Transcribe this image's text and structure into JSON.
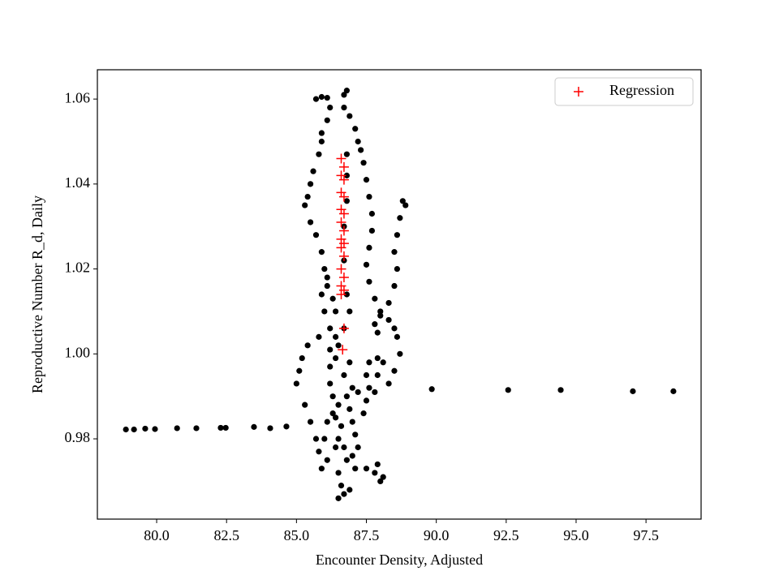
{
  "chart_data": {
    "type": "scatter",
    "xlabel": "Encounter Density, Adjusted",
    "ylabel": "Reproductive Number R_d, Daily",
    "xlim": [
      77.88,
      99.47
    ],
    "ylim": [
      0.9611,
      1.0669
    ],
    "xticks": [
      {
        "value": 80,
        "label": "80.0"
      },
      {
        "value": 82.5,
        "label": "82.5"
      },
      {
        "value": 85,
        "label": "85.0"
      },
      {
        "value": 87.5,
        "label": "87.5"
      },
      {
        "value": 90,
        "label": "90.0"
      },
      {
        "value": 92.5,
        "label": "92.5"
      },
      {
        "value": 95,
        "label": "95.0"
      },
      {
        "value": 97.5,
        "label": "97.5"
      }
    ],
    "yticks": [
      0.98,
      {
        "value": 1,
        "label": "1.00"
      },
      1.02,
      1.04,
      1.06
    ],
    "legend": "upper right",
    "series": [
      {
        "color": "#000000",
        "marker": "dot",
        "x": [
          78.9,
          79.19,
          79.59,
          79.94,
          80.73,
          81.42,
          82.29,
          82.47,
          83.48,
          84.06,
          84.64,
          89.84,
          92.57,
          94.45,
          97.03,
          98.48,
          85.7,
          85.9,
          86.1,
          86.2,
          86.1,
          85.9,
          85.9,
          85.8,
          85.6,
          85.5,
          85.4,
          85.3,
          85.5,
          85.7,
          85.9,
          86.0,
          86.1,
          86.3,
          86.4,
          86.2,
          85.8,
          85.4,
          85.2,
          85.1,
          85.0,
          85.3,
          85.5,
          85.7,
          85.8,
          85.9,
          86.7,
          86.8,
          86.7,
          86.9,
          87.1,
          87.2,
          87.3,
          87.4,
          87.5,
          87.6,
          87.7,
          87.7,
          87.6,
          87.5,
          87.6,
          87.8,
          88.0,
          88.3,
          88.5,
          88.6,
          88.7,
          88.5,
          88.3,
          88.8,
          88.9,
          88.7,
          88.6,
          88.5,
          88.6,
          88.5,
          88.3,
          88.0,
          87.8,
          87.9,
          86.8,
          86.8,
          86.8,
          86.7,
          86.7,
          86.8,
          86.9,
          86.7,
          86.5,
          86.4,
          86.2,
          86.2,
          86.3,
          86.5,
          86.4,
          86.6,
          86.5,
          86.7,
          86.8,
          87.0,
          87.2,
          87.1,
          87.0,
          86.9,
          86.8,
          87.2,
          87.5,
          87.6,
          87.5,
          87.6,
          87.9,
          88.1,
          87.9,
          87.8,
          87.4,
          87.0,
          86.7,
          86.9,
          86.3,
          86.1,
          86.0,
          86.4,
          86.1,
          86.5,
          86.6,
          86.7,
          86.5,
          86.9,
          87.1,
          87.5,
          87.8,
          88.0,
          88.1,
          87.9,
          86.2,
          86.4,
          86.0,
          85.9,
          86.1
        ],
        "values": [
          0.9822,
          0.9822,
          0.9824,
          0.9823,
          0.9825,
          0.9825,
          0.9826,
          0.9826,
          0.9828,
          0.9825,
          0.9829,
          0.9917,
          0.9915,
          0.9915,
          0.9912,
          0.9912,
          1.06,
          1.0605,
          1.0603,
          1.058,
          1.055,
          1.052,
          1.05,
          1.047,
          1.043,
          1.04,
          1.037,
          1.035,
          1.031,
          1.028,
          1.024,
          1.02,
          1.016,
          1.013,
          1.01,
          1.006,
          1.004,
          1.002,
          0.999,
          0.996,
          0.993,
          0.988,
          0.984,
          0.98,
          0.977,
          0.973,
          1.061,
          1.062,
          1.058,
          1.056,
          1.053,
          1.05,
          1.048,
          1.045,
          1.041,
          1.037,
          1.033,
          1.029,
          1.025,
          1.021,
          1.017,
          1.013,
          1.01,
          1.008,
          1.006,
          1.004,
          1.0,
          0.996,
          0.993,
          1.036,
          1.035,
          1.032,
          1.028,
          1.024,
          1.02,
          1.016,
          1.012,
          1.009,
          1.007,
          1.005,
          1.047,
          1.042,
          1.036,
          1.03,
          1.022,
          1.014,
          1.01,
          1.006,
          1.002,
          0.999,
          0.997,
          0.993,
          0.99,
          0.988,
          0.985,
          0.983,
          0.98,
          0.978,
          0.975,
          0.976,
          0.978,
          0.981,
          0.984,
          0.987,
          0.99,
          0.991,
          0.989,
          0.992,
          0.995,
          0.998,
          0.999,
          0.998,
          0.995,
          0.991,
          0.986,
          0.992,
          0.995,
          0.998,
          0.986,
          0.984,
          0.98,
          0.978,
          0.975,
          0.972,
          0.969,
          0.967,
          0.966,
          0.968,
          0.973,
          0.973,
          0.972,
          0.97,
          0.971,
          0.974,
          1.001,
          1.004,
          1.01,
          1.014,
          1.018
        ]
      },
      {
        "name": "Regression",
        "color": "#ff0000",
        "marker": "plus",
        "x": [
          86.6,
          86.7,
          86.6,
          86.7,
          86.6,
          86.7,
          86.6,
          86.7,
          86.6,
          86.7,
          86.6,
          86.7,
          86.6,
          86.7,
          86.6,
          86.7,
          86.6,
          86.7,
          86.6,
          86.7,
          86.65
        ],
        "values": [
          1.046,
          1.044,
          1.042,
          1.041,
          1.038,
          1.037,
          1.034,
          1.033,
          1.031,
          1.029,
          1.027,
          1.026,
          1.025,
          1.023,
          1.02,
          1.018,
          1.016,
          1.015,
          1.014,
          1.006,
          1.001
        ]
      }
    ]
  }
}
